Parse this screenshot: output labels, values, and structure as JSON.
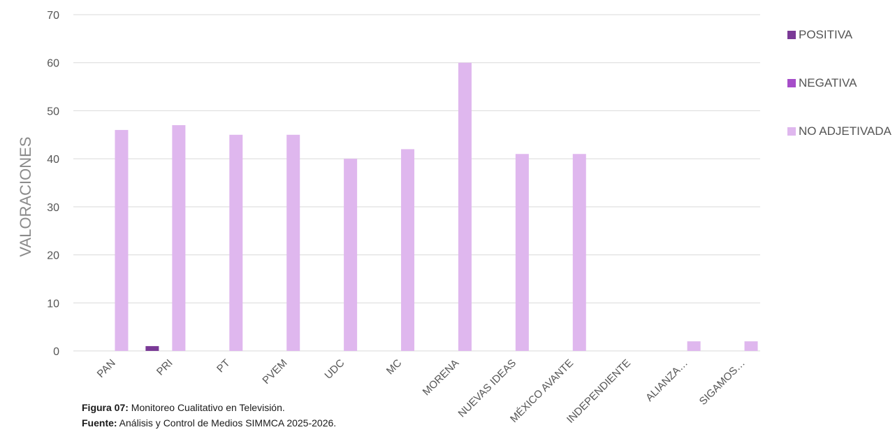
{
  "chart_data": {
    "type": "bar",
    "ylabel": "VALORACIONES",
    "xlabel": "",
    "ylim": [
      0,
      70
    ],
    "yticks": [
      0,
      10,
      20,
      30,
      40,
      50,
      60,
      70
    ],
    "grid": true,
    "legend_position": "right",
    "categories": [
      "PAN",
      "PRI",
      "PT",
      "PVEM",
      "UDC",
      "MC",
      "MORENA",
      "NUEVAS IDEAS",
      "MÉXICO AVANTE",
      "INDEPENDIENTE",
      "ALIANZA…",
      "SIGAMOS…"
    ],
    "series": [
      {
        "name": "POSITIVA",
        "color": "#7a3a96",
        "values": [
          0,
          1,
          0,
          0,
          0,
          0,
          0,
          0,
          0,
          0,
          0,
          0
        ]
      },
      {
        "name": "NEGATIVA",
        "color": "#a64dc9",
        "values": [
          0,
          0,
          0,
          0,
          0,
          0,
          0,
          0,
          0,
          0,
          0,
          0
        ]
      },
      {
        "name": "NO ADJETIVADA",
        "color": "#dfb7ee",
        "values": [
          46,
          47,
          45,
          45,
          40,
          42,
          60,
          41,
          41,
          0,
          2,
          2
        ]
      }
    ]
  },
  "caption": {
    "line1_bold": "Figura 07:",
    "line1_text": " Monitoreo Cualitativo en Televisión.",
    "line2_bold": "Fuente:",
    "line2_text": " Análisis y Control de Medios SIMMCA 2025-2026."
  }
}
